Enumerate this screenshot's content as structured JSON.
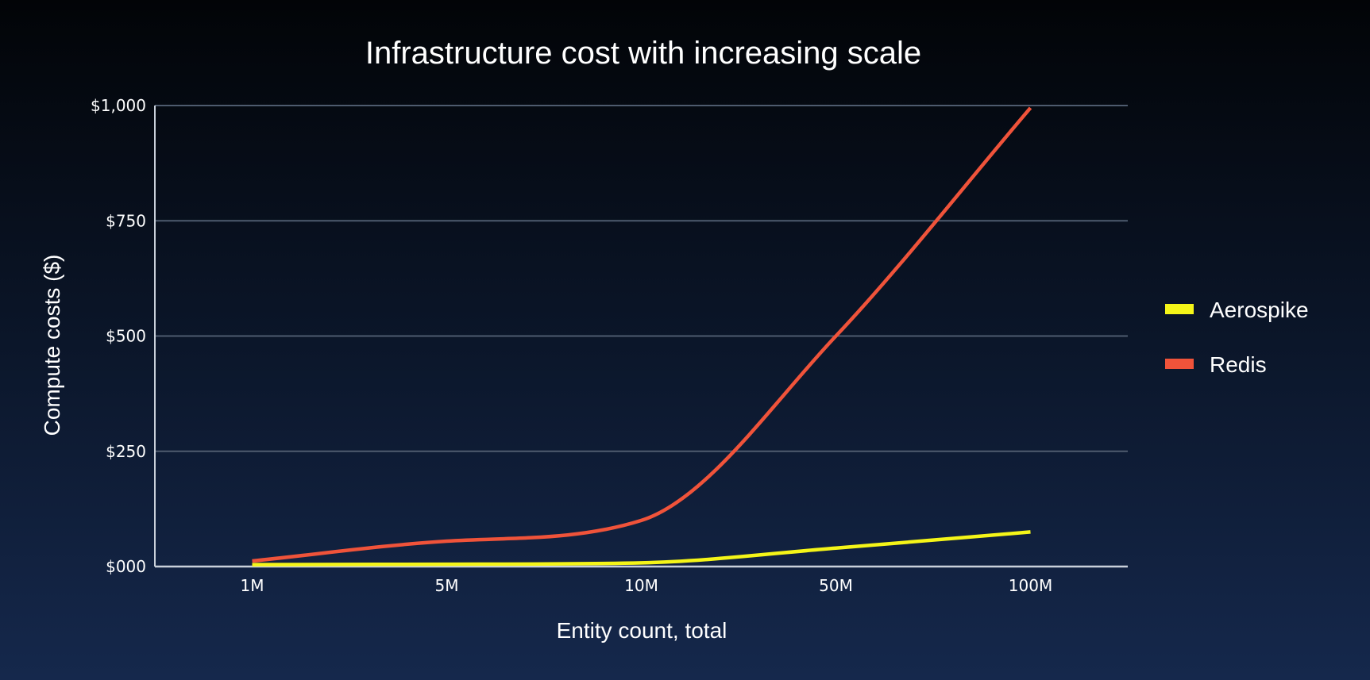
{
  "chart_data": {
    "type": "line",
    "title": "Infrastructure cost with increasing scale",
    "xlabel": "Entity count, total",
    "ylabel": "Compute costs ($)",
    "categories": [
      "1M",
      "5M",
      "10M",
      "50M",
      "100M"
    ],
    "y_ticks": [
      {
        "value": 0,
        "label": "$000"
      },
      {
        "value": 250,
        "label": "$250"
      },
      {
        "value": 500,
        "label": "$500"
      },
      {
        "value": 750,
        "label": "$750"
      },
      {
        "value": 1000,
        "label": "$1,000"
      }
    ],
    "ylim": [
      0,
      1000
    ],
    "grid": true,
    "legend_position": "right",
    "smooth": true,
    "series": [
      {
        "name": "Aerospike",
        "color": "#f5f518",
        "values": [
          4,
          5,
          8,
          40,
          75
        ]
      },
      {
        "name": "Redis",
        "color": "#f0533a",
        "values": [
          12,
          55,
          100,
          500,
          995
        ]
      }
    ]
  }
}
